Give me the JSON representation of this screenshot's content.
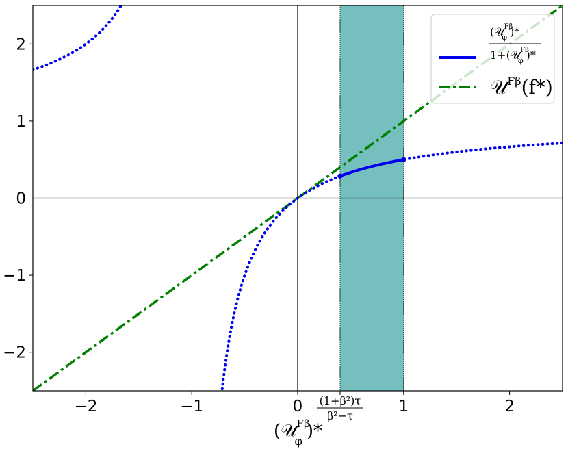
{
  "chart_data": {
    "type": "line",
    "title": "",
    "xlabel": {
      "base": "(𝒰",
      "sup": "Fβ",
      "sub": "φ",
      "tail": ")*"
    },
    "ylabel": "",
    "xlim": [
      -2.5,
      2.5
    ],
    "ylim": [
      -2.5,
      2.5
    ],
    "grid": false,
    "xticks": [
      -2,
      -1,
      0,
      1,
      2
    ],
    "yticks": [
      -2,
      -1,
      0,
      1,
      2
    ],
    "xtick_labels": [
      "−2",
      "−1",
      "0",
      "1",
      "2"
    ],
    "ytick_labels": [
      "−2",
      "−1",
      "0",
      "1",
      "2"
    ],
    "extra_xtick": {
      "x": 0.4,
      "numerator": "(1+β²)τ",
      "denominator": "β²−τ"
    },
    "shaded_region": {
      "x": [
        0.4,
        1.0
      ],
      "color": "#76bfbf"
    },
    "reference_lines": {
      "x0": true,
      "y0": true
    },
    "series": [
      {
        "name": "(𝒰^Fβ_φ)* / (1+(𝒰^Fβ_φ)*)",
        "formula": "x/(1+x)",
        "color": "#0000ee",
        "style": "dotted",
        "ranges": [
          [
            -2.5,
            -1.6
          ],
          [
            -0.74,
            2.5
          ]
        ]
      },
      {
        "name": "(𝒰^Fβ_φ)* / (1+(𝒰^Fβ_φ)*)",
        "formula": "x/(1+x)",
        "color": "#0000ee",
        "style": "solid",
        "range": [
          0.4,
          1.0
        ],
        "endpoints": [
          [
            0.4,
            0.286
          ],
          [
            1.0,
            0.5
          ]
        ]
      },
      {
        "name": "𝒰^Fβ(f*)",
        "formula": "x",
        "color": "#008000",
        "style": "dashdot",
        "range": [
          -2.5,
          2.5
        ]
      }
    ],
    "legend": {
      "placement": "top-right",
      "entries": [
        {
          "color": "#0000ee",
          "style": "solid",
          "num_base": "(𝒰",
          "num_sup": "Fβ",
          "num_sub": "φ",
          "num_tail": ")*",
          "den_prefix": "1+(𝒰",
          "den_sup": "Fβ",
          "den_sub": "φ",
          "den_tail": ")*"
        },
        {
          "color": "#008000",
          "style": "dashdot",
          "base": "𝒰",
          "sup": "Fβ",
          "tail": "(f*)"
        }
      ]
    }
  }
}
